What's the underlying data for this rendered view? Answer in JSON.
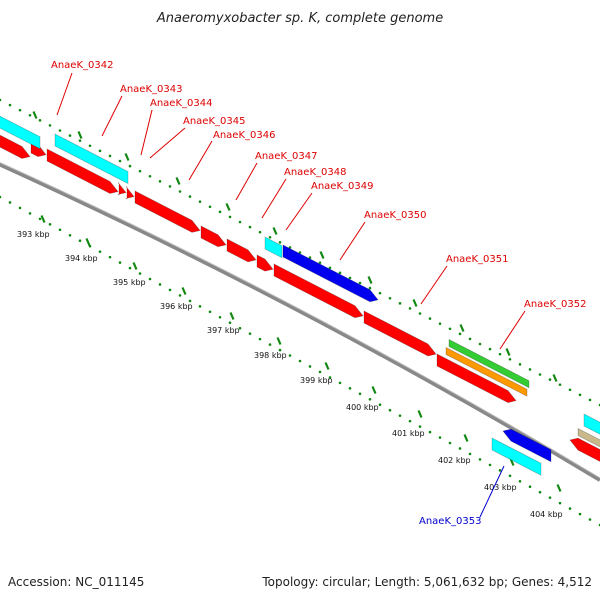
{
  "title": "Anaeromyxobacter sp. K, complete genome",
  "footer": {
    "accession": "Accession: NC_011145",
    "summary": "Topology: circular; Length: 5,061,632 bp; Genes: 4,512"
  },
  "colors": {
    "red_gene": "#ff0000",
    "cyan_gene": "#00ffff",
    "blue_gene": "#0000ee",
    "green_gene": "#33cc33",
    "orange_gene": "#ff9900",
    "tan_gene": "#c8b88a",
    "tick_green": "#118811",
    "backbone": "#888888",
    "label_red": "#dd0000",
    "label_blue": "#0000cc"
  },
  "kbp_labels": [
    "393 kbp",
    "394 kbp",
    "395 kbp",
    "396 kbp",
    "397 kbp",
    "398 kbp",
    "399 kbp",
    "400 kbp",
    "401 kbp",
    "402 kbp",
    "403 kbp",
    "404 kbp"
  ],
  "gene_labels": [
    {
      "text": "AnaeK_0342",
      "color": "red"
    },
    {
      "text": "AnaeK_0343",
      "color": "red"
    },
    {
      "text": "AnaeK_0344",
      "color": "red"
    },
    {
      "text": "AnaeK_0345",
      "color": "red"
    },
    {
      "text": "AnaeK_0346",
      "color": "red"
    },
    {
      "text": "AnaeK_0347",
      "color": "red"
    },
    {
      "text": "AnaeK_0348",
      "color": "red"
    },
    {
      "text": "AnaeK_0349",
      "color": "red"
    },
    {
      "text": "AnaeK_0350",
      "color": "red"
    },
    {
      "text": "AnaeK_0351",
      "color": "red"
    },
    {
      "text": "AnaeK_0352",
      "color": "red"
    },
    {
      "text": "AnaeK_0353",
      "color": "blue"
    }
  ]
}
